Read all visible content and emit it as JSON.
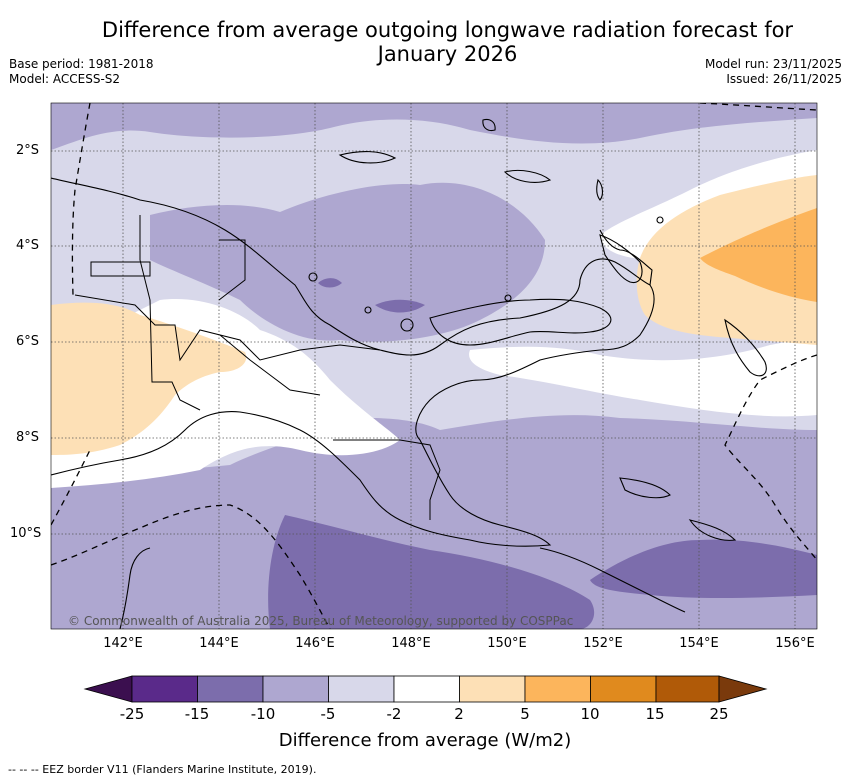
{
  "title": {
    "line1": "Difference from average outgoing longwave radiation forecast for",
    "line2": "January 2026"
  },
  "meta": {
    "base_period": "Base period: 1981-2018",
    "model": "Model: ACCESS-S2",
    "model_run": "Model run: 23/11/2025",
    "issued": "Issued: 26/11/2025"
  },
  "axes": {
    "lat_labels": [
      "2°S",
      "4°S",
      "6°S",
      "8°S",
      "10°S"
    ],
    "lon_labels": [
      "142°E",
      "144°E",
      "146°E",
      "148°E",
      "150°E",
      "152°E",
      "154°E",
      "156°E"
    ]
  },
  "colorbar": {
    "ticks": [
      "-25",
      "-15",
      "-10",
      "-5",
      "-2",
      "2",
      "5",
      "10",
      "15",
      "25"
    ],
    "title": "Difference from average (W/m2)",
    "colors": [
      "#3b0f4f",
      "#5a2a8a",
      "#7c6dac",
      "#aea7d0",
      "#d8d8ea",
      "#ffffff",
      "#fde0b6",
      "#fcb55c",
      "#e08a1e",
      "#b05a08",
      "#7a3a0c"
    ]
  },
  "copyright": "© Commonwealth of Australia 2025, Bureau of Meteorology, supported by COSPPac",
  "footnote": "-- -- -- EEZ border V11 (Flanders Marine Institute, 2019)."
}
